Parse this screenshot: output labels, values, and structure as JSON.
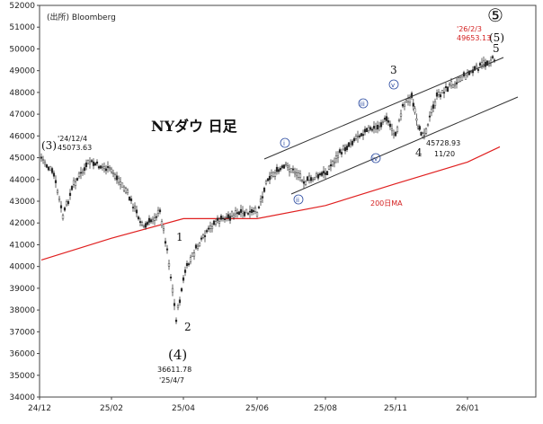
{
  "chart_data": {
    "type": "candlestick",
    "title": "NYダウ 日足",
    "source": "(出所) Bloomberg",
    "y_ticks": [
      "34000",
      "35000",
      "36000",
      "37000",
      "38000",
      "39000",
      "40000",
      "41000",
      "42000",
      "43000",
      "44000",
      "45000",
      "46000",
      "47000",
      "48000",
      "49000",
      "50000",
      "51000",
      "52000"
    ],
    "ylim": [
      34000,
      52000
    ],
    "x_ticks": [
      "24/12",
      "25/02",
      "25/04",
      "25/06",
      "25/08",
      "25/11",
      "26/01"
    ],
    "price_points": [
      [
        "24/12",
        45000
      ],
      [
        "24/12+",
        44200
      ],
      [
        "25/01a",
        42300
      ],
      [
        "25/01b",
        43800
      ],
      [
        "25/01c",
        44800
      ],
      [
        "25/02",
        44400
      ],
      [
        "25/02b",
        43500
      ],
      [
        "25/03a",
        41800
      ],
      [
        "25/03b",
        42500
      ],
      [
        "25/03c",
        40800
      ],
      [
        "25/04",
        37600
      ],
      [
        "25/04b",
        39800
      ],
      [
        "25/04c",
        40800
      ],
      [
        "25/05a",
        42000
      ],
      [
        "25/05b",
        42400
      ],
      [
        "25/06",
        42500
      ],
      [
        "25/06b",
        44100
      ],
      [
        "25/07a",
        44600
      ],
      [
        "25/07b",
        44300
      ],
      [
        "25/07c",
        43900
      ],
      [
        "25/08",
        44300
      ],
      [
        "25/08b",
        45300
      ],
      [
        "25/09a",
        46100
      ],
      [
        "25/09b",
        46400
      ],
      [
        "25/10a",
        46800
      ],
      [
        "25/10b",
        46000
      ],
      [
        "25/10c",
        47400
      ],
      [
        "25/11",
        47800
      ],
      [
        "25/11b",
        46300
      ],
      [
        "25/11c",
        46100
      ],
      [
        "25/12a",
        47800
      ],
      [
        "25/12b",
        48300
      ],
      [
        "26/01",
        48800
      ],
      [
        "26/01b",
        49300
      ],
      [
        "26/02",
        49600
      ]
    ],
    "ma200_label": "200日MA",
    "ma200": [
      [
        "24/12",
        40300
      ],
      [
        "25/02",
        41300
      ],
      [
        "25/04",
        42200
      ],
      [
        "25/06",
        42200
      ],
      [
        "25/08",
        42800
      ],
      [
        "25/11",
        43800
      ],
      [
        "26/01",
        44800
      ],
      [
        "26/02",
        45500
      ]
    ],
    "waves": {
      "w3_label": "(3)",
      "w3_date": "'24/12/4",
      "w3_value": "45073.63",
      "w4_label": "(4)",
      "w4_value": "36611.78",
      "w4_date": "'25/4/7",
      "w5_big": "⑤",
      "w5_label": "(5)",
      "w5_date": "'26/2/3",
      "w5_value": "49653.13",
      "sub1": "1",
      "sub2": "2",
      "sub3": "3",
      "sub4": "4",
      "sub5": "5",
      "sub4_value": "45728.93",
      "sub4_date": "11/20",
      "circled": [
        "i",
        "ii",
        "iii",
        "iv",
        "v"
      ]
    },
    "series_colors": {
      "price": "#222222",
      "ma200": "#e02020",
      "channel": "#333333",
      "circle": "#2a4aa0"
    }
  }
}
